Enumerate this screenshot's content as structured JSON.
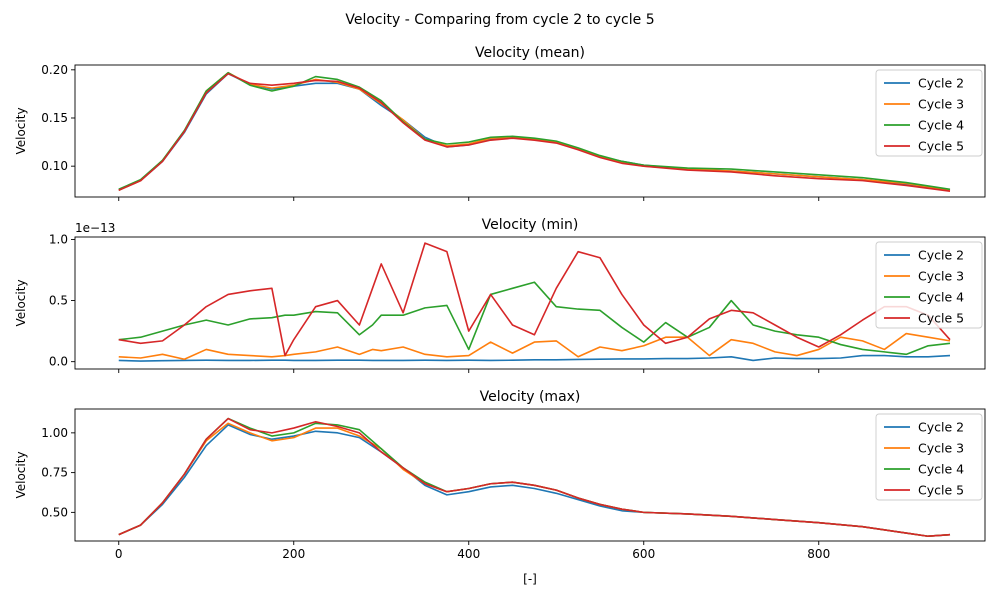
{
  "figure": {
    "suptitle": "Velocity - Comparing from cycle 2 to cycle 5",
    "xlabel": "[-]"
  },
  "colors": {
    "Cycle 2": "#1f77b4",
    "Cycle 3": "#ff7f0e",
    "Cycle 4": "#2ca02c",
    "Cycle 5": "#d62728"
  },
  "chart_data": [
    {
      "type": "line",
      "title": "Velocity (mean)",
      "ylabel": "Velocity",
      "xlabel": "",
      "scale_label": "",
      "xlim": [
        -50,
        990
      ],
      "ylim": [
        0.068,
        0.205
      ],
      "xticks": [
        0,
        200,
        400,
        600,
        800
      ],
      "xtick_labels": [],
      "yticks": [
        0.1,
        0.15,
        0.2
      ],
      "ytick_labels": [
        "0.10",
        "0.15",
        "0.20"
      ],
      "legend": "top-right",
      "grid": false,
      "x": [
        0,
        25,
        50,
        75,
        100,
        125,
        150,
        175,
        200,
        225,
        250,
        275,
        300,
        325,
        350,
        375,
        400,
        425,
        450,
        475,
        500,
        525,
        550,
        575,
        600,
        650,
        700,
        750,
        800,
        850,
        900,
        950
      ],
      "series": [
        {
          "name": "Cycle 2",
          "values": [
            0.075,
            0.085,
            0.105,
            0.135,
            0.175,
            0.196,
            0.185,
            0.18,
            0.183,
            0.186,
            0.186,
            0.18,
            0.163,
            0.148,
            0.13,
            0.12,
            0.122,
            0.128,
            0.13,
            0.128,
            0.125,
            0.118,
            0.11,
            0.105,
            0.101,
            0.097,
            0.095,
            0.092,
            0.089,
            0.086,
            0.081,
            0.075
          ]
        },
        {
          "name": "Cycle 3",
          "values": [
            0.075,
            0.085,
            0.106,
            0.136,
            0.178,
            0.197,
            0.185,
            0.181,
            0.184,
            0.19,
            0.187,
            0.18,
            0.165,
            0.148,
            0.128,
            0.121,
            0.123,
            0.129,
            0.13,
            0.128,
            0.125,
            0.118,
            0.11,
            0.104,
            0.1,
            0.097,
            0.095,
            0.092,
            0.089,
            0.086,
            0.082,
            0.075
          ]
        },
        {
          "name": "Cycle 4",
          "values": [
            0.076,
            0.086,
            0.106,
            0.137,
            0.178,
            0.197,
            0.184,
            0.178,
            0.183,
            0.193,
            0.19,
            0.182,
            0.168,
            0.146,
            0.128,
            0.123,
            0.125,
            0.13,
            0.131,
            0.129,
            0.126,
            0.119,
            0.111,
            0.105,
            0.101,
            0.098,
            0.097,
            0.094,
            0.091,
            0.088,
            0.083,
            0.076
          ]
        },
        {
          "name": "Cycle 5",
          "values": [
            0.075,
            0.085,
            0.105,
            0.136,
            0.176,
            0.196,
            0.186,
            0.184,
            0.186,
            0.189,
            0.188,
            0.181,
            0.166,
            0.145,
            0.127,
            0.12,
            0.122,
            0.127,
            0.129,
            0.127,
            0.124,
            0.117,
            0.109,
            0.103,
            0.1,
            0.096,
            0.094,
            0.09,
            0.087,
            0.085,
            0.08,
            0.074
          ]
        }
      ]
    },
    {
      "type": "line",
      "title": "Velocity (min)",
      "ylabel": "Velocity",
      "xlabel": "",
      "scale_label": "1e−13",
      "xlim": [
        -50,
        990
      ],
      "ylim": [
        -0.06,
        1.02
      ],
      "xticks": [
        0,
        200,
        400,
        600,
        800
      ],
      "xtick_labels": [],
      "yticks": [
        0.0,
        0.5,
        1.0
      ],
      "ytick_labels": [
        "0.0",
        "0.5",
        "1.0"
      ],
      "legend": "top-right",
      "grid": false,
      "x": [
        0,
        25,
        50,
        75,
        100,
        125,
        150,
        175,
        190,
        200,
        225,
        250,
        275,
        290,
        300,
        325,
        350,
        375,
        400,
        425,
        450,
        475,
        500,
        525,
        550,
        575,
        600,
        625,
        650,
        675,
        700,
        725,
        750,
        775,
        800,
        825,
        850,
        875,
        900,
        925,
        950
      ],
      "series": [
        {
          "name": "Cycle 2",
          "values": [
            0.01,
            0.005,
            0.008,
            0.01,
            0.012,
            0.01,
            0.01,
            0.012,
            0.012,
            0.01,
            0.01,
            0.012,
            0.012,
            0.01,
            0.01,
            0.01,
            0.012,
            0.01,
            0.012,
            0.01,
            0.012,
            0.015,
            0.015,
            0.018,
            0.02,
            0.022,
            0.022,
            0.025,
            0.025,
            0.03,
            0.04,
            0.01,
            0.03,
            0.025,
            0.025,
            0.03,
            0.05,
            0.05,
            0.04,
            0.04,
            0.05
          ]
        },
        {
          "name": "Cycle 3",
          "values": [
            0.04,
            0.03,
            0.06,
            0.02,
            0.1,
            0.06,
            0.05,
            0.04,
            0.05,
            0.06,
            0.08,
            0.12,
            0.06,
            0.1,
            0.09,
            0.12,
            0.06,
            0.04,
            0.05,
            0.16,
            0.07,
            0.16,
            0.17,
            0.04,
            0.12,
            0.09,
            0.13,
            0.2,
            0.2,
            0.05,
            0.18,
            0.15,
            0.08,
            0.05,
            0.1,
            0.2,
            0.17,
            0.1,
            0.23,
            0.2,
            0.17
          ]
        },
        {
          "name": "Cycle 4",
          "values": [
            0.18,
            0.2,
            0.25,
            0.3,
            0.34,
            0.3,
            0.35,
            0.36,
            0.38,
            0.38,
            0.41,
            0.4,
            0.22,
            0.3,
            0.38,
            0.38,
            0.44,
            0.46,
            0.1,
            0.55,
            0.6,
            0.65,
            0.45,
            0.43,
            0.42,
            0.28,
            0.16,
            0.32,
            0.2,
            0.28,
            0.5,
            0.3,
            0.25,
            0.22,
            0.2,
            0.14,
            0.1,
            0.08,
            0.06,
            0.13,
            0.15
          ]
        },
        {
          "name": "Cycle 5",
          "values": [
            0.18,
            0.15,
            0.17,
            0.3,
            0.45,
            0.55,
            0.58,
            0.6,
            0.05,
            0.18,
            0.45,
            0.5,
            0.3,
            0.6,
            0.8,
            0.4,
            0.97,
            0.9,
            0.25,
            0.55,
            0.3,
            0.22,
            0.6,
            0.9,
            0.85,
            0.55,
            0.3,
            0.15,
            0.2,
            0.35,
            0.42,
            0.4,
            0.3,
            0.2,
            0.12,
            0.22,
            0.34,
            0.45,
            0.45,
            0.38,
            0.18
          ]
        }
      ]
    },
    {
      "type": "line",
      "title": "Velocity (max)",
      "ylabel": "Velocity",
      "xlabel": "[-]",
      "scale_label": "",
      "xlim": [
        -50,
        990
      ],
      "ylim": [
        0.32,
        1.15
      ],
      "xticks": [
        0,
        200,
        400,
        600,
        800
      ],
      "xtick_labels": [
        "0",
        "200",
        "400",
        "600",
        "800"
      ],
      "yticks": [
        0.5,
        0.75,
        1.0
      ],
      "ytick_labels": [
        "0.50",
        "0.75",
        "1.00"
      ],
      "legend": "top-right",
      "grid": false,
      "x": [
        0,
        25,
        50,
        75,
        100,
        125,
        150,
        175,
        200,
        225,
        250,
        275,
        300,
        325,
        350,
        375,
        400,
        425,
        450,
        475,
        500,
        525,
        550,
        575,
        600,
        650,
        700,
        750,
        800,
        850,
        900,
        925,
        950
      ],
      "series": [
        {
          "name": "Cycle 2",
          "values": [
            0.36,
            0.42,
            0.55,
            0.72,
            0.92,
            1.05,
            0.99,
            0.96,
            0.98,
            1.01,
            1.0,
            0.97,
            0.88,
            0.78,
            0.67,
            0.61,
            0.63,
            0.66,
            0.67,
            0.65,
            0.62,
            0.58,
            0.54,
            0.51,
            0.5,
            0.49,
            0.475,
            0.455,
            0.435,
            0.41,
            0.37,
            0.35,
            0.36
          ]
        },
        {
          "name": "Cycle 3",
          "values": [
            0.36,
            0.42,
            0.56,
            0.74,
            0.95,
            1.06,
            1.0,
            0.95,
            0.97,
            1.03,
            1.03,
            0.98,
            0.9,
            0.77,
            0.68,
            0.63,
            0.65,
            0.68,
            0.69,
            0.67,
            0.64,
            0.59,
            0.55,
            0.52,
            0.5,
            0.49,
            0.475,
            0.455,
            0.435,
            0.41,
            0.37,
            0.35,
            0.36
          ]
        },
        {
          "name": "Cycle 4",
          "values": [
            0.36,
            0.42,
            0.56,
            0.74,
            0.96,
            1.09,
            1.03,
            0.98,
            1.0,
            1.06,
            1.05,
            1.02,
            0.9,
            0.78,
            0.69,
            0.63,
            0.65,
            0.68,
            0.69,
            0.67,
            0.64,
            0.59,
            0.55,
            0.52,
            0.5,
            0.49,
            0.475,
            0.455,
            0.435,
            0.41,
            0.37,
            0.35,
            0.36
          ]
        },
        {
          "name": "Cycle 5",
          "values": [
            0.36,
            0.42,
            0.56,
            0.74,
            0.96,
            1.09,
            1.02,
            1.0,
            1.03,
            1.07,
            1.04,
            1.0,
            0.88,
            0.78,
            0.68,
            0.63,
            0.65,
            0.68,
            0.69,
            0.67,
            0.64,
            0.59,
            0.55,
            0.52,
            0.5,
            0.49,
            0.475,
            0.455,
            0.435,
            0.41,
            0.37,
            0.35,
            0.36
          ]
        }
      ]
    }
  ]
}
